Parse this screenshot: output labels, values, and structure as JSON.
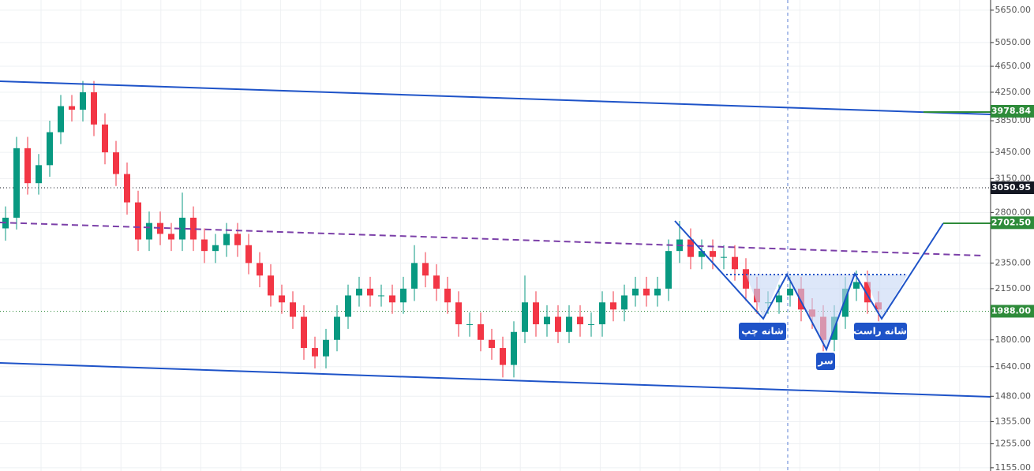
{
  "chart_data": {
    "type": "candlestick",
    "log_scale": true,
    "grid": true,
    "ylim": [
      1142,
      5853
    ],
    "yticks": [
      {
        "value": 5650,
        "label": "5650.00"
      },
      {
        "value": 5050,
        "label": "5050.00"
      },
      {
        "value": 4650,
        "label": "4650.00"
      },
      {
        "value": 4250,
        "label": "4250.00"
      },
      {
        "value": 3850,
        "label": "3850.00"
      },
      {
        "value": 3450,
        "label": "3450.00"
      },
      {
        "value": 3150,
        "label": "3150.00"
      },
      {
        "value": 2800,
        "label": "2800.00"
      },
      {
        "value": 2350,
        "label": "2350.00"
      },
      {
        "value": 2150,
        "label": "2150.00"
      },
      {
        "value": 1800,
        "label": "1800.00"
      },
      {
        "value": 1640,
        "label": "1640.00"
      },
      {
        "value": 1480,
        "label": "1480.00"
      },
      {
        "value": 1355,
        "label": "1355.00"
      },
      {
        "value": 1255,
        "label": "1255.00"
      },
      {
        "value": 1155,
        "label": "1155.00"
      }
    ],
    "price_lines": [
      {
        "value": 3978.84,
        "label": "3978.84",
        "color": "#2e8b3a"
      },
      {
        "value": 3050.95,
        "label": "3050.95",
        "color": "#131722"
      },
      {
        "value": 2702.5,
        "label": "2702.50",
        "color": "#2e8b3a"
      },
      {
        "value": 1988,
        "label": "1988.00",
        "color": "#2e8b3a"
      }
    ],
    "up_color": "#089981",
    "down_color": "#f23645",
    "annotations": [
      "شانه چپ",
      "سر",
      "شانه راست"
    ],
    "candles": {
      "open": [
        2650,
        2750,
        3500,
        3100,
        3300,
        3700,
        4050,
        4000,
        4250,
        3800,
        3450,
        3200,
        2900,
        2550,
        2700,
        2600,
        2550,
        2750,
        2550,
        2450,
        2500,
        2600,
        2500,
        2350,
        2250,
        2100,
        2050,
        1950,
        1750,
        1700,
        1800,
        1950,
        2100,
        2150,
        2100,
        2100,
        2050,
        2150,
        2350,
        2250,
        2150,
        2050,
        1900,
        1900,
        1800,
        1750,
        1650,
        1850,
        2050,
        1900,
        1950,
        1850,
        1950,
        1900,
        1900,
        2050,
        2000,
        2100,
        2150,
        2100,
        2150,
        2450,
        2550,
        2400,
        2450,
        2400,
        2400,
        2300,
        2150,
        2050,
        2050,
        2100,
        2150,
        2000,
        1950,
        1800,
        1950,
        2150,
        2200,
        2050
      ],
      "high": [
        2860,
        3640,
        3640,
        3430,
        3850,
        4210,
        4210,
        4420,
        4420,
        3950,
        3590,
        3330,
        3020,
        2810,
        2810,
        2700,
        3000,
        2860,
        2650,
        2600,
        2700,
        2700,
        2600,
        2440,
        2340,
        2180,
        2130,
        2030,
        1820,
        1870,
        2030,
        2180,
        2240,
        2240,
        2180,
        2180,
        2240,
        2500,
        2440,
        2340,
        2240,
        2130,
        1980,
        1980,
        1870,
        1820,
        1920,
        2250,
        2130,
        2030,
        2030,
        2030,
        2030,
        1980,
        2130,
        2130,
        2180,
        2240,
        2240,
        2240,
        2550,
        2720,
        2650,
        2550,
        2550,
        2500,
        2500,
        2390,
        2240,
        2130,
        2180,
        2240,
        2240,
        2080,
        2030,
        2030,
        2240,
        2290,
        2290,
        2130
      ],
      "low": [
        2540,
        2640,
        2980,
        2980,
        3170,
        3550,
        3840,
        3840,
        3650,
        3310,
        3070,
        2780,
        2450,
        2450,
        2500,
        2450,
        2450,
        2450,
        2350,
        2350,
        2400,
        2400,
        2260,
        2160,
        2020,
        1970,
        1870,
        1680,
        1630,
        1630,
        1730,
        1870,
        2020,
        2020,
        2020,
        1970,
        1970,
        2060,
        2160,
        2060,
        1970,
        1820,
        1820,
        1730,
        1680,
        1580,
        1580,
        1780,
        1820,
        1820,
        1780,
        1780,
        1820,
        1820,
        1820,
        1920,
        1920,
        2020,
        2020,
        2020,
        2060,
        2350,
        2300,
        2300,
        2300,
        2300,
        2210,
        2060,
        1970,
        1970,
        1970,
        2020,
        1920,
        1870,
        1730,
        1730,
        1870,
        2060,
        1970,
        1920
      ],
      "close": [
        2750,
        3500,
        3100,
        3300,
        3700,
        4050,
        4000,
        4250,
        3800,
        3450,
        3200,
        2900,
        2550,
        2700,
        2600,
        2550,
        2750,
        2550,
        2450,
        2500,
        2600,
        2500,
        2350,
        2250,
        2100,
        2050,
        1950,
        1750,
        1700,
        1800,
        1950,
        2100,
        2150,
        2100,
        2100,
        2050,
        2150,
        2350,
        2250,
        2150,
        2050,
        1900,
        1900,
        1800,
        1750,
        1650,
        1850,
        2050,
        1900,
        1950,
        1850,
        1950,
        1900,
        1900,
        2050,
        2000,
        2100,
        2150,
        2100,
        2150,
        2450,
        2550,
        2400,
        2450,
        2400,
        2400,
        2300,
        2150,
        2050,
        2050,
        2100,
        2150,
        2000,
        1950,
        1800,
        1950,
        2150,
        2200,
        2050,
        2000
      ]
    }
  }
}
